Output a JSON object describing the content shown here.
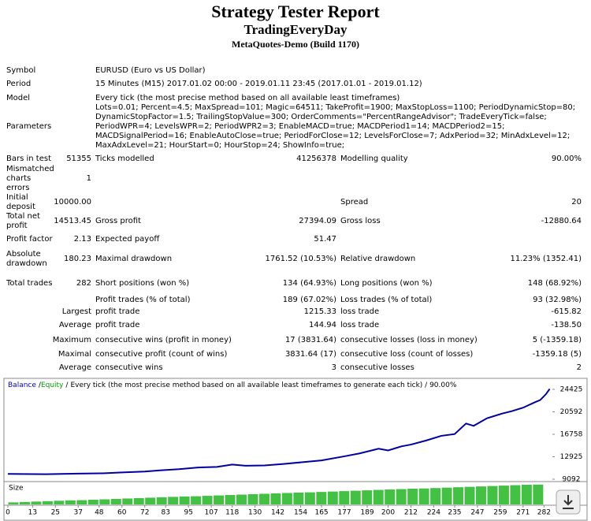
{
  "header": {
    "title": "Strategy Tester Report",
    "expert": "TradingEveryDay",
    "server": "MetaQuotes-Demo (Build 1170)"
  },
  "report": {
    "info": [
      {
        "label": "Symbol",
        "text": "EURUSD (Euro vs US Dollar)"
      },
      {
        "label": "Period",
        "text": "15 Minutes (M15) 2017.01.02 00:00 - 2019.01.11 23:45 (2017.01.01 - 2019.01.12)"
      },
      {
        "label": "Model",
        "text": "Every tick (the most precise method based on all available least timeframes)"
      },
      {
        "label": "Parameters",
        "text": "Lots=0.01; Percent=4.5; MaxSpread=101; Magic=64511; TakeProfit=1900; MaxStopLoss=1100; PeriodDynamicStop=80; DynamicStopFactor=1.5; TrailingStopValue=300; OrderComments=\"PercentRangeAdvisor\"; TradeEveryTick=false; PeriodWPR=4; LevelsWPR=2; PeriodWPR2=3; EnableMACD=true; MACDPeriod1=14; MACDPeriod2=15; MACDSignalPeriod=16; EnableAutoClose=true; PeriodForClose=12; LevelsForClose=7; AdxPeriod=32; MinAdxLevel=12; MaxAdxLevel=21; HourStart=0; HourStop=24; ShowInfo=true;"
      }
    ],
    "rows": [
      [
        "Bars in test",
        "51355",
        "Ticks modelled",
        "41256378",
        "Modelling quality",
        "90.00%"
      ],
      [
        "Mismatched charts errors",
        "1",
        null,
        null,
        null,
        null
      ],
      [
        "Initial deposit",
        "10000.00",
        null,
        null,
        "Spread",
        "20"
      ],
      [
        "Total net profit",
        "14513.45",
        "Gross profit",
        "27394.09",
        "Gross loss",
        "-12880.64"
      ],
      [
        "Profit factor",
        "2.13",
        "Expected payoff",
        "51.47",
        null,
        null
      ],
      [
        "Absolute drawdown",
        "180.23",
        "Maximal drawdown",
        "1761.52 (10.53%)",
        "Relative drawdown",
        "11.23% (1352.41)"
      ],
      [
        "Total trades",
        "282",
        "Short positions (won %)",
        "134 (64.93%)",
        "Long positions (won %)",
        "148 (68.92%)"
      ],
      [
        null,
        null,
        "Profit trades (% of total)",
        "189 (67.02%)",
        "Loss trades (% of total)",
        "93 (32.98%)"
      ],
      [
        null,
        "Largest",
        "profit trade",
        "1215.33",
        "loss trade",
        "-615.82"
      ],
      [
        null,
        "Average",
        "profit trade",
        "144.94",
        "loss trade",
        "-138.50"
      ],
      [
        null,
        "Maximum",
        "consecutive wins (profit in money)",
        "17 (3831.64)",
        "consecutive losses (loss in money)",
        "5 (-1359.18)"
      ],
      [
        null,
        "Maximal",
        "consecutive profit (count of wins)",
        "3831.64 (17)",
        "consecutive loss (count of losses)",
        "-1359.18 (5)"
      ],
      [
        null,
        "Average",
        "consecutive wins",
        "3",
        "consecutive losses",
        "2"
      ]
    ]
  },
  "chart_data": {
    "type": "line",
    "title": "Every tick (the most precise method based on all available least timeframes to generate each tick) / 90.00%",
    "separator": "/",
    "legend": [
      {
        "name": "Balance",
        "color": "#0000c0"
      },
      {
        "name": "Equity",
        "color": "#00a000"
      }
    ],
    "x": [
      0,
      20,
      37,
      50,
      60,
      72,
      80,
      90,
      100,
      110,
      118,
      125,
      135,
      145,
      155,
      165,
      177,
      185,
      195,
      200,
      207,
      212,
      220,
      228,
      235,
      241,
      245,
      252,
      260,
      265,
      271,
      277,
      280,
      283,
      285
    ],
    "series": [
      {
        "name": "Balance",
        "color": "#0000a0",
        "values": [
          10000,
          9950,
          10050,
          10100,
          10250,
          10400,
          10600,
          10800,
          11100,
          11200,
          11600,
          11400,
          11450,
          11700,
          12000,
          12300,
          13000,
          13500,
          14300,
          14000,
          14700,
          15000,
          15700,
          16500,
          16800,
          18600,
          18200,
          19500,
          20300,
          20700,
          21300,
          22200,
          22600,
          23600,
          24500
        ]
      }
    ],
    "xlim": [
      0,
      286
    ],
    "xticks": [
      0,
      13,
      25,
      37,
      48,
      60,
      72,
      83,
      95,
      107,
      118,
      130,
      142,
      154,
      165,
      177,
      189,
      200,
      212,
      224,
      235,
      247,
      259,
      271,
      282
    ],
    "ylim": [
      8823,
      26040
    ],
    "yticks": [
      9092,
      12925,
      16758,
      20592,
      24425
    ],
    "size": {
      "label": "Size",
      "color": "#44c044",
      "ylim": [
        0,
        1
      ],
      "x": [
        0,
        6,
        12,
        18,
        24,
        30,
        36,
        42,
        48,
        54,
        60,
        66,
        72,
        78,
        84,
        90,
        96,
        102,
        108,
        114,
        120,
        126,
        132,
        138,
        144,
        150,
        156,
        162,
        168,
        174,
        180,
        186,
        192,
        198,
        204,
        210,
        216,
        222,
        228,
        234,
        240,
        246,
        252,
        258,
        264,
        270,
        276
      ],
      "values": [
        0.1,
        0.12,
        0.14,
        0.16,
        0.18,
        0.2,
        0.21,
        0.23,
        0.25,
        0.27,
        0.29,
        0.31,
        0.33,
        0.35,
        0.37,
        0.39,
        0.4,
        0.42,
        0.44,
        0.46,
        0.48,
        0.5,
        0.52,
        0.54,
        0.56,
        0.58,
        0.59,
        0.61,
        0.63,
        0.65,
        0.67,
        0.69,
        0.71,
        0.73,
        0.75,
        0.77,
        0.78,
        0.8,
        0.82,
        0.84,
        0.86,
        0.88,
        0.9,
        0.92,
        0.94,
        0.96,
        0.97
      ]
    }
  }
}
